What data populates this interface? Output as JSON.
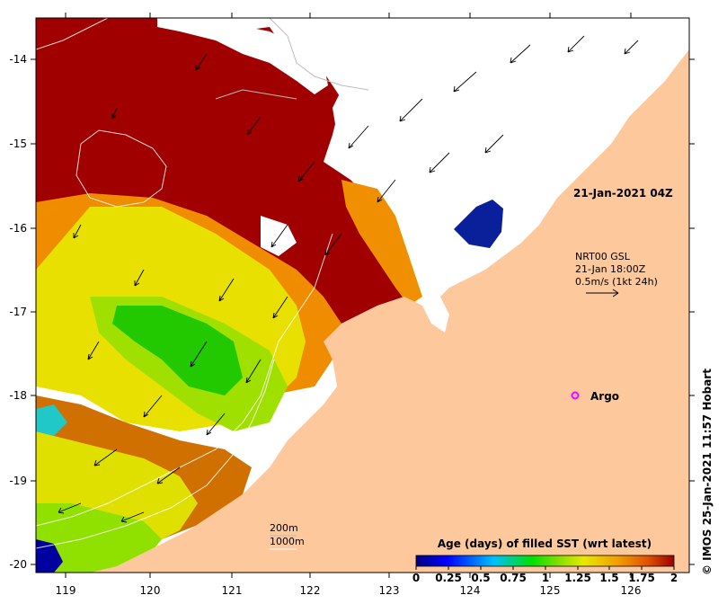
{
  "map": {
    "lon_ticks": [
      "119",
      "120",
      "121",
      "122",
      "123",
      "124",
      "125",
      "126"
    ],
    "lat_ticks": [
      "-14",
      "-15",
      "-16",
      "-17",
      "-18",
      "-19",
      "-20"
    ],
    "date_label": "21-Jan-2021 04Z",
    "currents_label": {
      "line1": "NRT00 GSL",
      "line2": "21-Jan 18:00Z",
      "line3": "0.5m/s (1kt 24h)"
    },
    "argo_label": "Argo",
    "isobaths": [
      "200m",
      "1000m"
    ],
    "credit": "© IMOS 25-Jan-2021 11:57 Hobart",
    "colors": {
      "land": "#fcc89c",
      "no_data": "#ffffff",
      "argo_marker": "#ff00ff"
    }
  },
  "colorbar": {
    "title": "Age (days) of filled SST (wrt latest)",
    "tick_labels": [
      "0",
      "0.25",
      "0.5",
      "0.75",
      "1",
      "1.25",
      "1.5",
      "1.75",
      "2"
    ],
    "min": 0,
    "max": 2
  }
}
